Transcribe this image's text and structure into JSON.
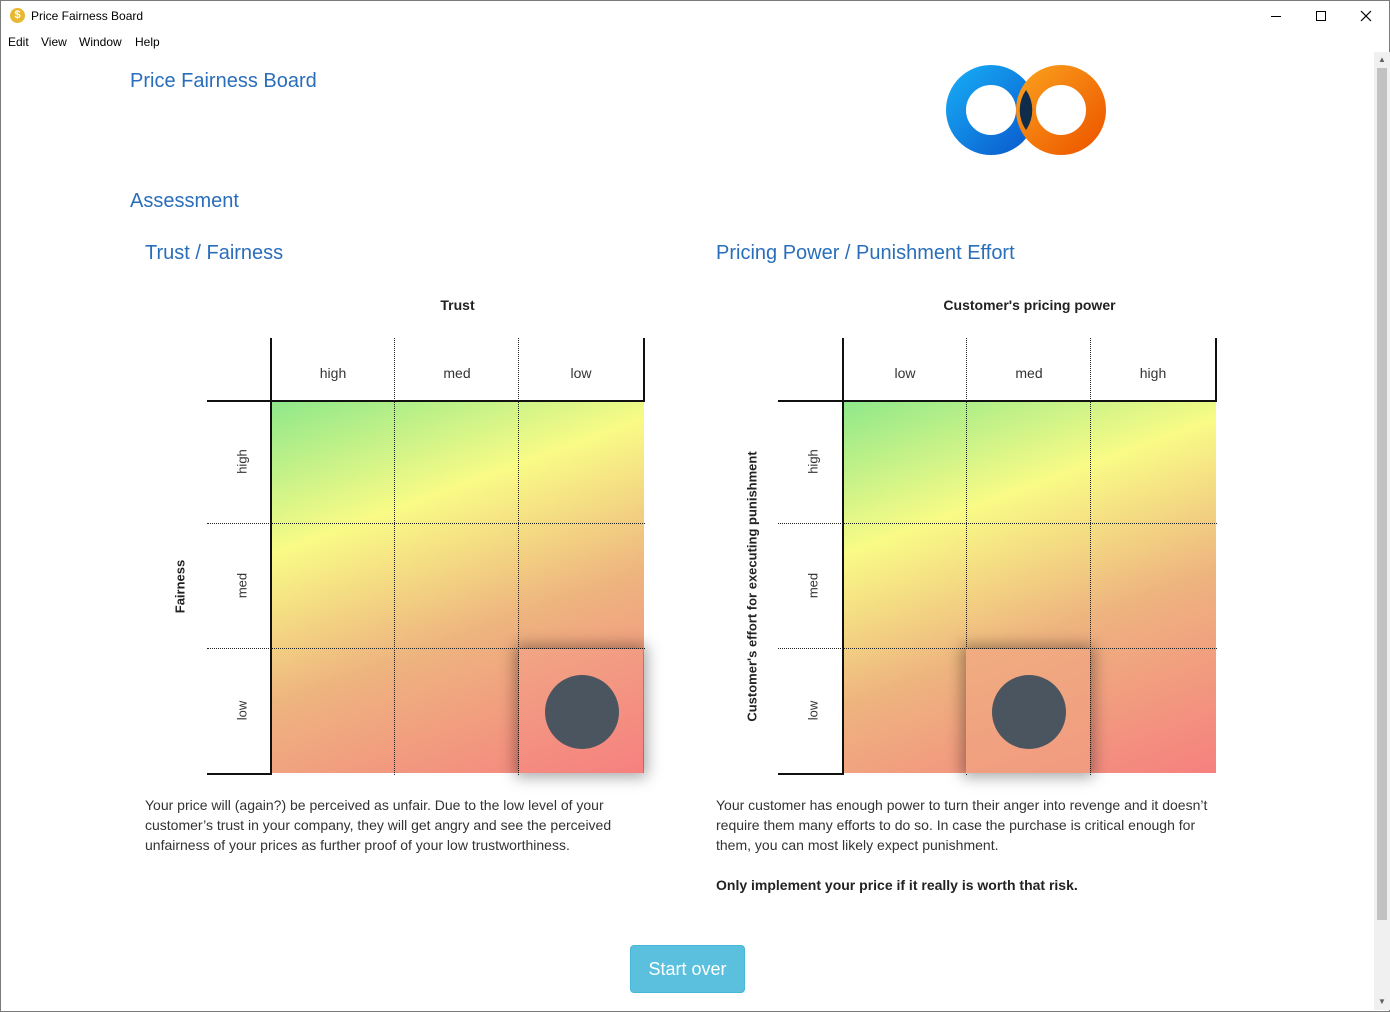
{
  "window": {
    "title": "Price Fairness Board",
    "app_icon": "coin-icon"
  },
  "menu": [
    "Edit",
    "View",
    "Window",
    "Help"
  ],
  "page": {
    "title": "Price Fairness Board",
    "logo": "infinity-rings-logo",
    "section": "Assessment"
  },
  "trust_panel": {
    "heading": "Trust / Fairness",
    "chart_title": "Trust",
    "ylabel": "Fairness",
    "columns": [
      "high",
      "med",
      "low"
    ],
    "rows": [
      "high",
      "med",
      "low"
    ],
    "selected": {
      "column": "low",
      "row": "low"
    },
    "description": "Your price will (again?) be perceived as unfair. Due to the low level of your customer’s trust in your company, they will get angry and see the perceived unfairness of your prices as further proof of your low trustworthiness."
  },
  "power_panel": {
    "heading": "Pricing Power / Punishment Effort",
    "chart_title": "Customer's pricing power",
    "ylabel": "Customer's effort for executing punishment",
    "columns": [
      "low",
      "med",
      "high"
    ],
    "rows": [
      "high",
      "med",
      "low"
    ],
    "selected": {
      "column": "med",
      "row": "low"
    },
    "description": "Your customer has enough power to turn their anger into revenge and it doesn’t require them many efforts to do so. In case the purchase is critical enough for them, you can most likely expect punishment.",
    "emphasis": "Only implement your price if it really is worth that risk."
  },
  "actions": {
    "start_over": "Start over"
  },
  "colors": {
    "heading": "#2a6ebb",
    "good": "#8fe88a",
    "mid": "#f9fb86",
    "bad": "#f6807f",
    "dot": "#4b5560",
    "button": "#5bc0de"
  }
}
